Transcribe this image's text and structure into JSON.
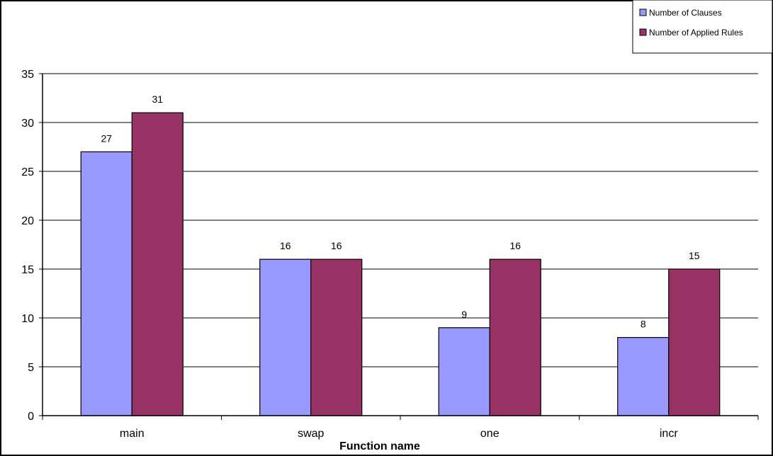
{
  "chart_data": {
    "type": "bar",
    "title": "",
    "xlabel": "Function name",
    "ylabel": "",
    "categories": [
      "main",
      "swap",
      "one",
      "incr"
    ],
    "series": [
      {
        "name": "Number of Clauses",
        "values": [
          27,
          16,
          9,
          8
        ],
        "color": "#9999ff"
      },
      {
        "name": "Number of Applied Rules",
        "values": [
          31,
          16,
          16,
          15
        ],
        "color": "#993366"
      }
    ],
    "ylim": [
      0,
      35
    ],
    "yticks": [
      0,
      5,
      10,
      15,
      20,
      25,
      30,
      35
    ],
    "grid": true,
    "legend_position": "top-right"
  }
}
